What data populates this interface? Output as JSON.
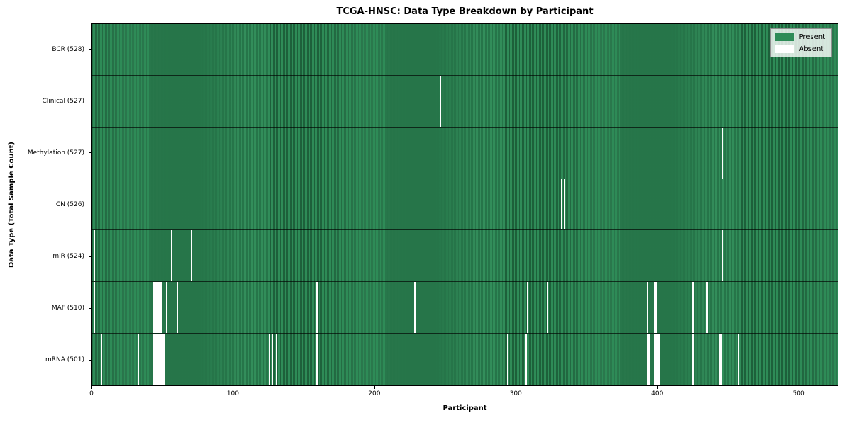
{
  "chart_data": {
    "type": "heatmap",
    "title": "TCGA-HNSC: Data Type Breakdown by Participant",
    "xlabel": "Participant",
    "ylabel": "Data Type (Total Sample Count)",
    "n_participants": 528,
    "x_ticks": [
      0,
      100,
      200,
      300,
      400,
      500
    ],
    "colors": {
      "present": "#2e8b57",
      "absent": "#ffffff"
    },
    "legend": [
      {
        "label": "Present",
        "color": "#2e8b57"
      },
      {
        "label": "Absent",
        "color": "#ffffff"
      }
    ],
    "rows": [
      {
        "label": "BCR (528)",
        "total": 528,
        "absent": []
      },
      {
        "label": "Clinical (527)",
        "total": 527,
        "absent": [
          246
        ]
      },
      {
        "label": "Methylation (527)",
        "total": 527,
        "absent": [
          446
        ]
      },
      {
        "label": "CN (526)",
        "total": 526,
        "absent": [
          332,
          334
        ]
      },
      {
        "label": "miR (524)",
        "total": 524,
        "absent": [
          1,
          56,
          70,
          446
        ]
      },
      {
        "label": "MAF (510)",
        "total": 510,
        "absent": [
          1,
          43,
          44,
          45,
          46,
          47,
          48,
          52,
          60,
          159,
          228,
          308,
          322,
          393,
          398,
          399,
          425,
          435
        ]
      },
      {
        "label": "mRNA (501)",
        "total": 501,
        "absent": [
          6,
          32,
          43,
          44,
          45,
          46,
          47,
          48,
          49,
          50,
          125,
          127,
          130,
          158,
          159,
          294,
          307,
          393,
          394,
          398,
          399,
          400,
          401,
          425,
          444,
          445,
          457
        ]
      }
    ]
  }
}
